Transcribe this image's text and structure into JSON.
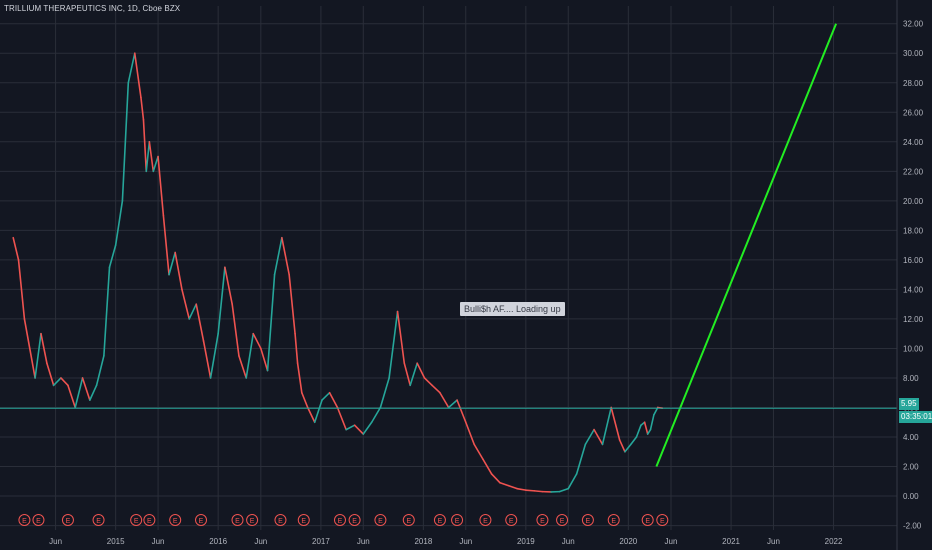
{
  "header": {
    "title": "TRILLIUM THERAPEUTICS INC, 1D, Cboe BZX"
  },
  "annotation": {
    "text": "Bulli$h AF.... Loading up"
  },
  "price_badges": {
    "last_price": "5.95",
    "countdown": "03:35:01"
  },
  "colors": {
    "background": "#131722",
    "grid": "#2a2e39",
    "up": "#26a69a",
    "down": "#ef5350",
    "trendline": "#22ee22",
    "price_line": "#26a69a",
    "earnings_marker": "#ef5350"
  },
  "chart_data": {
    "type": "line",
    "title": "TRILLIUM THERAPEUTICS INC, 1D, Cboe BZX",
    "xlabel": "",
    "ylabel": "",
    "x_ticks": [
      "Jun",
      "2015",
      "Jun",
      "2016",
      "Jun",
      "2017",
      "Jun",
      "2018",
      "Jun",
      "2019",
      "Jun",
      "2020",
      "Jun",
      "2021",
      "Jun",
      "2022"
    ],
    "x_tick_dates": [
      "2014-06-01",
      "2015-01-01",
      "2015-06-01",
      "2016-01-01",
      "2016-06-01",
      "2017-01-01",
      "2017-06-01",
      "2018-01-01",
      "2018-06-01",
      "2019-01-01",
      "2019-06-01",
      "2020-01-01",
      "2020-06-01",
      "2021-01-01",
      "2021-06-01",
      "2022-01-01"
    ],
    "y_ticks": [
      "32.00",
      "30.00",
      "28.00",
      "26.00",
      "24.00",
      "22.00",
      "20.00",
      "18.00",
      "16.00",
      "14.00",
      "12.00",
      "10.00",
      "8.00",
      "6.00",
      "4.00",
      "2.00",
      "0.00",
      "-2.00"
    ],
    "ylim": [
      -2.3,
      33.2
    ],
    "grid": true,
    "series": [
      {
        "x": [
          "2014-01-01",
          "2014-01-20",
          "2014-02-10",
          "2014-03-01",
          "2014-03-20",
          "2014-04-10",
          "2014-05-01",
          "2014-05-25",
          "2014-06-20",
          "2014-07-15",
          "2014-08-10",
          "2014-09-05",
          "2014-10-01",
          "2014-10-25",
          "2014-11-20",
          "2014-12-10",
          "2015-01-01",
          "2015-01-25",
          "2015-02-15",
          "2015-03-10",
          "2015-04-01",
          "2015-04-10",
          "2015-04-20",
          "2015-05-01",
          "2015-05-15",
          "2015-06-01",
          "2015-06-20",
          "2015-07-10",
          "2015-08-01",
          "2015-08-25",
          "2015-09-20",
          "2015-10-15",
          "2015-11-10",
          "2015-12-05",
          "2016-01-01",
          "2016-01-25",
          "2016-02-20",
          "2016-03-15",
          "2016-04-10",
          "2016-05-05",
          "2016-06-01",
          "2016-06-25",
          "2016-07-20",
          "2016-08-15",
          "2016-09-10",
          "2016-10-01",
          "2016-10-10",
          "2016-10-25",
          "2016-11-15",
          "2016-12-10",
          "2017-01-05",
          "2017-02-01",
          "2017-03-01",
          "2017-04-01",
          "2017-05-01",
          "2017-06-01",
          "2017-07-01",
          "2017-08-01",
          "2017-09-01",
          "2017-10-01",
          "2017-10-25",
          "2017-11-15",
          "2017-12-10",
          "2018-01-05",
          "2018-02-01",
          "2018-03-01",
          "2018-04-01",
          "2018-05-01",
          "2018-06-01",
          "2018-07-01",
          "2018-08-01",
          "2018-09-01",
          "2018-10-01",
          "2018-11-01",
          "2018-12-01",
          "2019-01-01",
          "2019-02-01",
          "2019-03-01",
          "2019-04-01",
          "2019-05-01",
          "2019-06-01",
          "2019-07-01",
          "2019-08-01",
          "2019-09-01",
          "2019-10-01",
          "2019-11-01",
          "2019-12-01",
          "2019-12-20",
          "2020-01-10",
          "2020-01-30",
          "2020-02-15",
          "2020-02-28",
          "2020-03-10",
          "2020-03-20",
          "2020-04-01",
          "2020-04-15",
          "2020-05-01"
        ],
        "values": [
          17.5,
          16.0,
          12.0,
          10.0,
          8.0,
          11.0,
          9.0,
          7.5,
          8.0,
          7.5,
          6.0,
          8.0,
          6.5,
          7.5,
          9.5,
          15.5,
          17.0,
          20.0,
          28.0,
          30.0,
          27.0,
          25.5,
          22.0,
          24.0,
          22.0,
          23.0,
          19.0,
          15.0,
          16.5,
          14.0,
          12.0,
          13.0,
          10.5,
          8.0,
          11.0,
          15.5,
          13.0,
          9.5,
          8.0,
          11.0,
          10.0,
          8.5,
          15.0,
          17.5,
          15.0,
          11.0,
          9.0,
          7.0,
          6.0,
          5.0,
          6.5,
          7.0,
          6.0,
          4.5,
          4.8,
          4.2,
          5.0,
          6.0,
          8.0,
          12.5,
          9.0,
          7.5,
          9.0,
          8.0,
          7.5,
          7.0,
          6.0,
          6.5,
          5.0,
          3.5,
          2.5,
          1.5,
          0.9,
          0.7,
          0.5,
          0.4,
          0.35,
          0.3,
          0.28,
          0.3,
          0.5,
          1.5,
          3.5,
          4.5,
          3.5,
          6.0,
          3.8,
          3.0,
          3.5,
          4.0,
          4.8,
          5.0,
          4.2,
          4.5,
          5.5,
          6.0,
          5.95
        ]
      },
      {
        "name": "",
        "x": [
          "2020-04-10",
          "2022-01-10"
        ],
        "values": [
          2.0,
          32.0
        ]
      }
    ],
    "horizontal_line": {
      "value": 5.95
    },
    "earnings_events": [
      "2014-02-10",
      "2014-04-01",
      "2014-07-15",
      "2014-11-01",
      "2015-03-15",
      "2015-05-01",
      "2015-08-01",
      "2015-11-01",
      "2016-03-10",
      "2016-05-01",
      "2016-08-10",
      "2016-11-01",
      "2017-03-10",
      "2017-05-01",
      "2017-08-01",
      "2017-11-10",
      "2018-03-01",
      "2018-05-01",
      "2018-08-10",
      "2018-11-10",
      "2019-03-01",
      "2019-05-10",
      "2019-08-10",
      "2019-11-10",
      "2020-03-10",
      "2020-05-01"
    ],
    "earnings_label": "E"
  }
}
